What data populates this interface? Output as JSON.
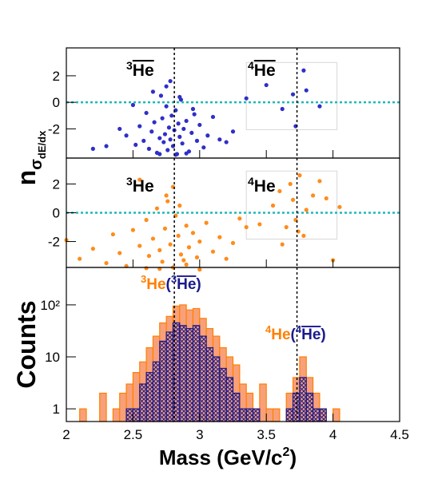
{
  "chart_data": [
    {
      "type": "scatter",
      "ylabel": "n",
      "ylabel_sub": "σ",
      "ylabel_subsub": "dE/dx",
      "xlim": [
        2,
        4.5
      ],
      "ylim": [
        -4.2,
        4.1
      ],
      "xticks": [
        2,
        2.5,
        3,
        3.5,
        4,
        4.5
      ],
      "yticks": [
        -2,
        0,
        2
      ],
      "reference_lines": {
        "x": [
          2.81,
          3.73
        ],
        "y": [
          0
        ]
      },
      "selection_box": {
        "x": [
          3.35,
          4.03
        ],
        "y": [
          -2.06,
          3
        ]
      },
      "annotations": [
        {
          "color": "#000000",
          "parts": [
            {
              "text": "3",
              "sup": true
            },
            {
              "text": "He",
              "anti": true
            }
          ]
        },
        {
          "color": "#000000",
          "parts": [
            {
              "text": "4",
              "sup": true
            },
            {
              "text": "He",
              "anti": true
            }
          ]
        }
      ],
      "series": [
        {
          "color": "#2f2fc8",
          "x": [
            2.45,
            2.52,
            2.55,
            2.58,
            2.6,
            2.62,
            2.64,
            2.66,
            2.68,
            2.7,
            2.71,
            2.72,
            2.73,
            2.74,
            2.75,
            2.76,
            2.77,
            2.78,
            2.79,
            2.8,
            2.81,
            2.82,
            2.83,
            2.84,
            2.85,
            2.86,
            2.87,
            2.88,
            2.9,
            2.92,
            2.94,
            2.96,
            2.98,
            3.0,
            3.03,
            3.06,
            3.1,
            3.15,
            3.2,
            2.3,
            2.4,
            2.5,
            2.65,
            2.75,
            2.85,
            2.95,
            2.78,
            2.82,
            2.7,
            2.9,
            3.35,
            3.5,
            3.62,
            3.7,
            3.72,
            3.78,
            3.8,
            3.9,
            2.2,
            3.25
          ],
          "values": [
            -2.5,
            -3.2,
            -1.8,
            -2.9,
            -0.8,
            -3.5,
            -2.2,
            -1.5,
            -3.8,
            -2.7,
            0.5,
            -1.2,
            -3.0,
            -2.4,
            -0.3,
            -3.6,
            -1.9,
            -2.8,
            -1.0,
            -3.3,
            -2.1,
            -0.6,
            -3.9,
            -1.6,
            -2.6,
            0.2,
            -3.1,
            -2.0,
            -1.4,
            -3.7,
            -2.3,
            -0.9,
            -2.9,
            -1.7,
            -3.4,
            -2.5,
            -1.1,
            -2.8,
            -3.0,
            -3.3,
            -2.0,
            -0.2,
            0.8,
            1.2,
            0.4,
            -0.5,
            1.6,
            -3.95,
            -3.9,
            -3.85,
            0.3,
            1.3,
            -0.5,
            0.6,
            -1.8,
            2.4,
            0.9,
            -0.3,
            -3.5,
            -2.2
          ]
        }
      ]
    },
    {
      "type": "scatter",
      "xlim": [
        2,
        4.5
      ],
      "ylim": [
        -3.8,
        3.8
      ],
      "xticks": [
        2,
        2.5,
        3,
        3.5,
        4,
        4.5
      ],
      "yticks": [
        -2,
        0,
        2
      ],
      "reference_lines": {
        "x": [
          2.81,
          3.73
        ],
        "y": [
          0
        ]
      },
      "selection_box": {
        "x": [
          3.35,
          4.03
        ],
        "y": [
          -1.83,
          2.9
        ]
      },
      "annotations": [
        {
          "color": "#000000",
          "parts": [
            {
              "text": "3",
              "sup": true
            },
            {
              "text": "He"
            }
          ]
        },
        {
          "color": "#000000",
          "parts": [
            {
              "text": "4",
              "sup": true
            },
            {
              "text": "He"
            }
          ]
        }
      ],
      "series": [
        {
          "color": "#ff8c1a",
          "x": [
            2.0,
            2.1,
            2.2,
            2.3,
            2.35,
            2.4,
            2.45,
            2.5,
            2.55,
            2.6,
            2.62,
            2.65,
            2.68,
            2.7,
            2.72,
            2.74,
            2.76,
            2.78,
            2.8,
            2.82,
            2.84,
            2.86,
            2.88,
            2.9,
            2.92,
            2.95,
            2.98,
            3.0,
            3.05,
            3.1,
            3.15,
            3.2,
            3.25,
            3.3,
            2.75,
            2.8,
            2.85,
            2.7,
            2.9,
            2.6,
            3.45,
            3.55,
            3.6,
            3.65,
            3.68,
            3.7,
            3.72,
            3.75,
            3.78,
            3.8,
            3.85,
            3.9,
            3.95,
            4.05,
            3.62,
            3.74,
            2.55,
            3.0,
            3.35,
            4.0
          ],
          "values": [
            -1.9,
            -3.2,
            -2.5,
            -3.5,
            -1.5,
            -2.8,
            -3.7,
            -1.2,
            -2.3,
            -0.5,
            -3.0,
            -1.8,
            0.3,
            -2.6,
            -3.4,
            -1.1,
            0.8,
            -2.2,
            -3.8,
            -0.2,
            -1.6,
            -2.9,
            -3.3,
            -0.9,
            -2.4,
            -1.4,
            -3.1,
            -2.0,
            -0.7,
            -2.7,
            -1.7,
            -3.2,
            -2.1,
            -0.4,
            1.2,
            1.8,
            0.5,
            -3.9,
            -3.6,
            -3.85,
            -0.8,
            0.5,
            1.5,
            -1.0,
            2.0,
            0.9,
            -0.5,
            2.6,
            -1.6,
            0.2,
            1.2,
            2.2,
            1.0,
            0.4,
            -2.2,
            -1.3,
            2.3,
            -3.95,
            -1.0,
            -3.3
          ]
        }
      ]
    },
    {
      "type": "histogram",
      "ylabel": "Counts",
      "xlabel_parts": [
        "Mass (GeV/c",
        "2",
        ")"
      ],
      "xlim": [
        2,
        4.5
      ],
      "ylim": [
        0.57,
        525
      ],
      "log_y": true,
      "xticks": [
        2,
        2.5,
        3,
        3.5,
        4,
        4.5
      ],
      "yticks": [
        1,
        10,
        {
          "value": 100,
          "label": "10²"
        }
      ],
      "reference_lines": {
        "x": [
          2.81,
          3.73
        ]
      },
      "annotations": [
        {
          "parts": [
            {
              "text": "3",
              "sup": true,
              "color": "#ff8000"
            },
            {
              "text": "He",
              "color": "#ff8000"
            },
            {
              "text": "(",
              "color": "#1a1a8c"
            },
            {
              "text": "3",
              "sup": true,
              "color": "#1a1a8c"
            },
            {
              "text": "He",
              "anti": true,
              "color": "#1a1a8c"
            },
            {
              "text": ")",
              "color": "#1a1a8c"
            }
          ]
        },
        {
          "parts": [
            {
              "text": "4",
              "sup": true,
              "color": "#ff8000"
            },
            {
              "text": "He",
              "color": "#ff8000"
            },
            {
              "text": "(",
              "color": "#1a1a8c"
            },
            {
              "text": "4",
              "sup": true,
              "color": "#1a1a8c"
            },
            {
              "text": "He",
              "anti": true,
              "color": "#1a1a8c"
            },
            {
              "text": ")",
              "color": "#1a1a8c"
            }
          ]
        }
      ],
      "bins": [
        2.0,
        2.05,
        2.1,
        2.15,
        2.2,
        2.25,
        2.3,
        2.35,
        2.4,
        2.45,
        2.5,
        2.55,
        2.6,
        2.65,
        2.7,
        2.75,
        2.8,
        2.85,
        2.9,
        2.95,
        3.0,
        3.05,
        3.1,
        3.15,
        3.2,
        3.25,
        3.3,
        3.35,
        3.4,
        3.45,
        3.5,
        3.55,
        3.6,
        3.65,
        3.7,
        3.75,
        3.8,
        3.85,
        3.9,
        3.95,
        4.0,
        4.05,
        4.1,
        4.15,
        4.2,
        4.25,
        4.3,
        4.35,
        4.4,
        4.45,
        4.5
      ],
      "series": [
        {
          "color": "#ff8000",
          "fill": "#f8a07a",
          "values": [
            0,
            0,
            1,
            0,
            0,
            2,
            0,
            1,
            2,
            3,
            5,
            8,
            15,
            25,
            45,
            60,
            95,
            100,
            80,
            85,
            55,
            35,
            25,
            15,
            10,
            7,
            3,
            2,
            1,
            3,
            1,
            1,
            0,
            2,
            4,
            10,
            4,
            2,
            1,
            0,
            1,
            0,
            0,
            0,
            0,
            0,
            0,
            0,
            0,
            0
          ]
        },
        {
          "color": "#1a1a8c",
          "hatch": true,
          "values": [
            0,
            0,
            0,
            0,
            0,
            0,
            0,
            0,
            0,
            1,
            1,
            3,
            5,
            8,
            20,
            30,
            45,
            40,
            35,
            40,
            25,
            15,
            10,
            6,
            4,
            2,
            1,
            1,
            1,
            0,
            0,
            0,
            0,
            1,
            2,
            4,
            2,
            1,
            1,
            0,
            0,
            0,
            0,
            0,
            0,
            0,
            0,
            0,
            0,
            0
          ]
        }
      ]
    }
  ]
}
